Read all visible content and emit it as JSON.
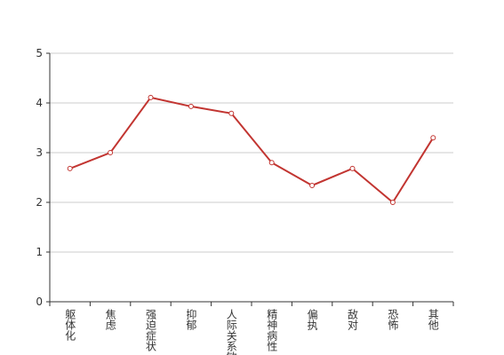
{
  "chart_data": {
    "type": "line",
    "categories": [
      "躯体化",
      "焦虑",
      "强迫症状",
      "抑郁",
      "人际关系敏感",
      "精神病性",
      "偏执",
      "敌对",
      "恐怖",
      "其他"
    ],
    "values": [
      2.68,
      3.0,
      4.11,
      3.93,
      3.79,
      2.8,
      2.34,
      2.68,
      2.0,
      3.3
    ],
    "color": "#c23531",
    "ylim": [
      0,
      5
    ],
    "yticks": [
      0,
      1,
      2,
      3,
      4,
      5
    ],
    "grid": true
  }
}
